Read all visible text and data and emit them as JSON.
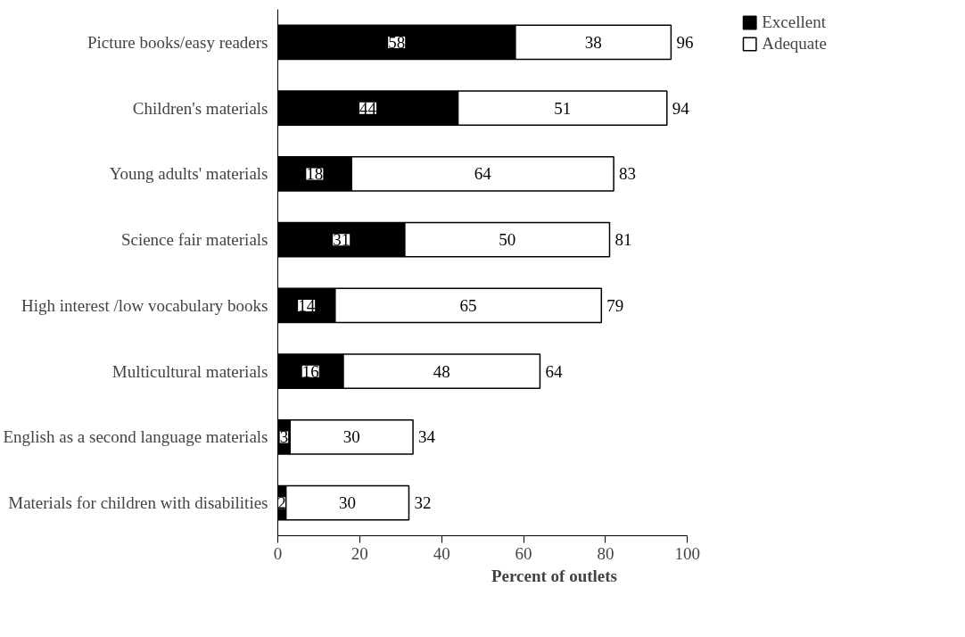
{
  "chart_data": {
    "type": "bar",
    "orientation": "horizontal",
    "stacked": true,
    "xlabel": "Percent of outlets",
    "categories": [
      "Picture books/easy readers",
      "Children's materials",
      "Young adults' materials",
      "Science fair materials",
      "High interest /low vocabulary books",
      "Multicultural materials",
      "English as a second language materials",
      "Materials for children with disabilities"
    ],
    "series": [
      {
        "name": "Excellent",
        "color": "#000000",
        "values": [
          58,
          44,
          18,
          31,
          14,
          16,
          3,
          2
        ]
      },
      {
        "name": "Adequate",
        "color": "#ffffff",
        "values": [
          38,
          51,
          64,
          50,
          65,
          48,
          30,
          30
        ]
      }
    ],
    "totals": [
      "96",
      "94",
      "83",
      "81",
      "79",
      "64",
      "34",
      "32"
    ],
    "data_labels": true,
    "xlim": [
      0,
      100
    ],
    "xticks": [
      0,
      20,
      40,
      60,
      80,
      100
    ],
    "grid": false,
    "legend": "top right"
  }
}
